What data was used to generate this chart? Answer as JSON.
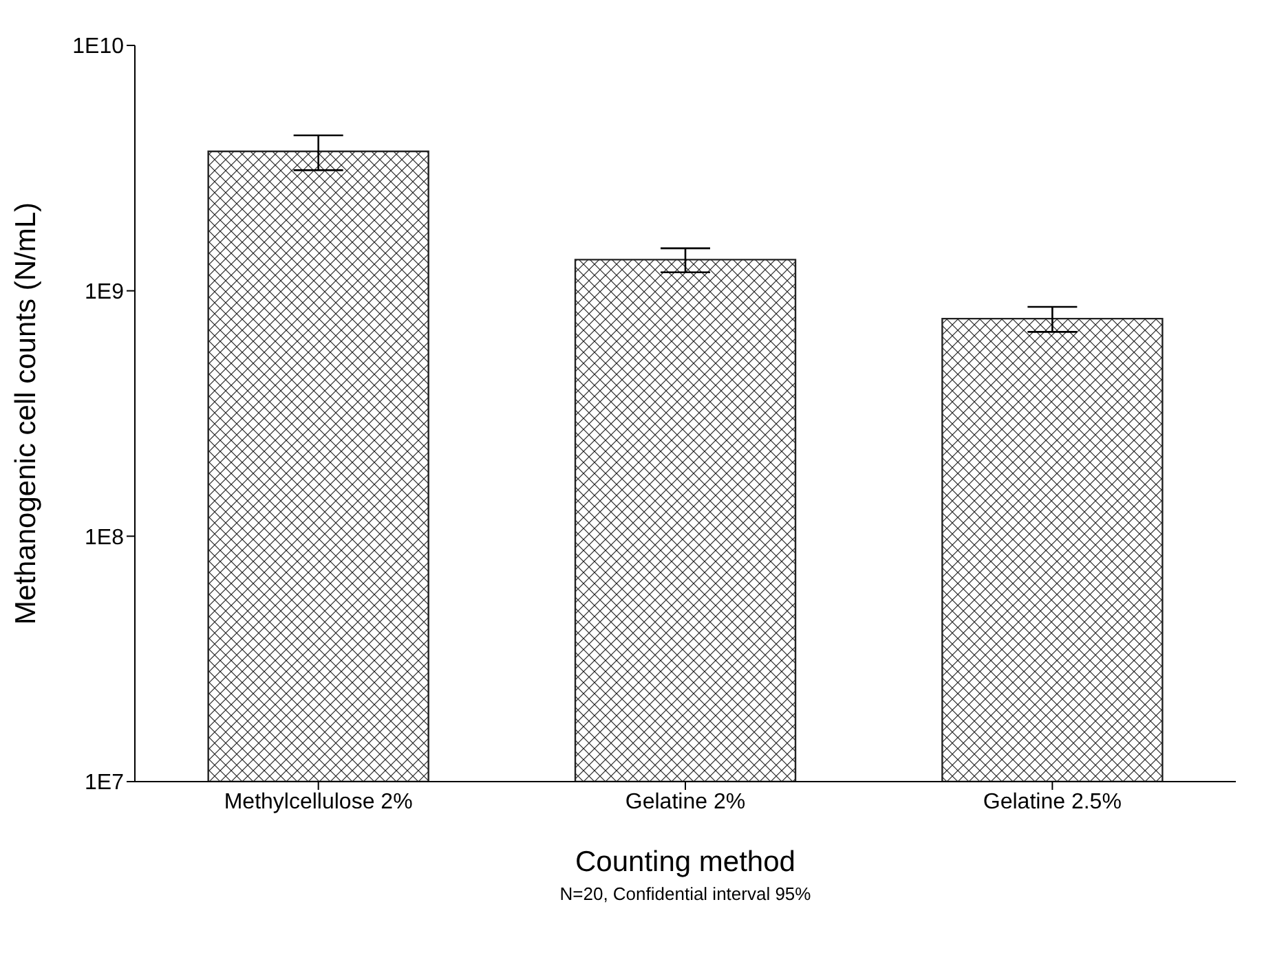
{
  "chart_data": {
    "type": "bar",
    "categories": [
      "Methylcellulose 2%",
      "Gelatine 2%",
      "Gelatine 2.5%"
    ],
    "values": [
      3700000000.0,
      1340000000.0,
      770000000.0
    ],
    "color": "#222222",
    "errors": [
      [
        3100000000.0,
        4300000000.0
      ],
      [
        1190000000.0,
        1490000000.0
      ],
      [
        680000000.0,
        860000000.0
      ]
    ],
    "log": true,
    "ylim": [
      10000000.0,
      10000000000.0
    ],
    "yticks": [
      {
        "value": 10000000.0,
        "label": "1E7"
      },
      {
        "value": 100000000.0,
        "label": "1E8"
      },
      {
        "value": 1000000000.0,
        "label": "1E9"
      },
      {
        "value": 10000000000.0,
        "label": "1E10"
      }
    ],
    "xlabel": "Counting method",
    "ylabel": "Methanogenic cell counts (N/mL)",
    "annotations": [
      "N=20, Confidential interval 95%"
    ],
    "grid": false,
    "legend": false
  }
}
